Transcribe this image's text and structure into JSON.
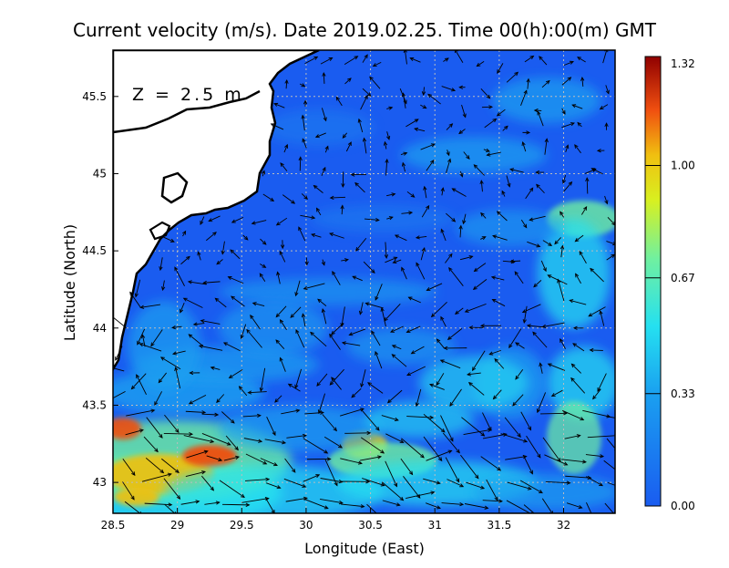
{
  "title": "Current velocity (m/s). Date 2019.02.25. Time 00(h):00(m) GMT",
  "depth_label": "Z = 2.5 m",
  "xlabel": "Longitude (East)",
  "ylabel": "Latitude (North)",
  "x_ticks": [
    "28.5",
    "29",
    "29.5",
    "30",
    "30.5",
    "31",
    "31.5",
    "32"
  ],
  "y_ticks": [
    "43",
    "43.5",
    "44",
    "44.5",
    "45",
    "45.5"
  ],
  "colorbar_ticks": [
    "0.00",
    "0.33",
    "0.67",
    "1.00",
    "1.32"
  ],
  "colors": {
    "ocean_base": "#1a5cf0",
    "land": "#ffffff",
    "coastline": "#000000",
    "arrows": "#000000",
    "grid": "#bdbdbd"
  },
  "chart_data": {
    "type": "heatmap",
    "title": "Current velocity (m/s). Date 2019.02.25. Time 00(h):00(m) GMT",
    "xlabel": "Longitude (East)",
    "ylabel": "Latitude (North)",
    "xlim": [
      28.5,
      32.4
    ],
    "ylim": [
      42.8,
      45.8
    ],
    "colorbar_range": [
      0.0,
      1.32
    ],
    "colormap": "jet",
    "grid": true,
    "overlay": "velocity vectors"
  }
}
